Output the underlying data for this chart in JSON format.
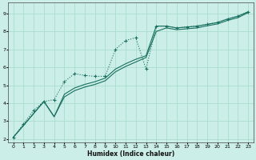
{
  "xlabel": "Humidex (Indice chaleur)",
  "ylabel": "",
  "xlim": [
    -0.5,
    23.5
  ],
  "ylim": [
    1.8,
    9.6
  ],
  "background_color": "#cceee8",
  "grid_color": "#aaddcc",
  "line_color": "#1a7060",
  "line1_x": [
    0,
    1,
    2,
    3,
    4,
    5,
    6,
    7,
    8,
    9,
    10,
    11,
    12,
    13,
    14,
    15,
    16,
    17,
    18,
    19,
    20,
    21,
    22,
    23
  ],
  "line1_y": [
    2.1,
    2.85,
    3.6,
    4.1,
    4.2,
    5.2,
    5.65,
    5.55,
    5.5,
    5.5,
    7.0,
    7.5,
    7.65,
    5.9,
    8.3,
    8.3,
    8.2,
    8.25,
    8.3,
    8.4,
    8.5,
    8.7,
    8.85,
    9.1
  ],
  "line2_x": [
    0,
    3,
    4,
    5,
    6,
    7,
    8,
    9,
    10,
    11,
    12,
    13,
    14,
    15,
    16,
    17,
    18,
    19,
    20,
    21,
    22,
    23
  ],
  "line2_y": [
    2.1,
    4.1,
    3.25,
    4.5,
    4.85,
    5.05,
    5.2,
    5.4,
    5.9,
    6.2,
    6.45,
    6.65,
    8.3,
    8.3,
    8.2,
    8.25,
    8.3,
    8.4,
    8.5,
    8.7,
    8.85,
    9.1
  ],
  "line3_x": [
    0,
    3,
    4,
    5,
    6,
    7,
    8,
    9,
    10,
    11,
    12,
    13,
    14,
    15,
    16,
    17,
    18,
    19,
    20,
    21,
    22,
    23
  ],
  "line3_y": [
    2.1,
    4.1,
    3.25,
    4.35,
    4.7,
    4.9,
    5.05,
    5.25,
    5.75,
    6.05,
    6.3,
    6.55,
    8.0,
    8.2,
    8.1,
    8.15,
    8.2,
    8.32,
    8.42,
    8.62,
    8.77,
    9.05
  ],
  "xticks": [
    0,
    1,
    2,
    3,
    4,
    5,
    6,
    7,
    8,
    9,
    10,
    11,
    12,
    13,
    14,
    15,
    16,
    17,
    18,
    19,
    20,
    21,
    22,
    23
  ],
  "yticks": [
    2,
    3,
    4,
    5,
    6,
    7,
    8,
    9
  ]
}
